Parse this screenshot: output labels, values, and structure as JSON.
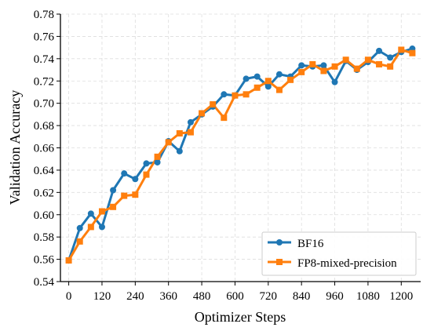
{
  "chart_data": {
    "type": "line",
    "xlabel": "Optimizer Steps",
    "ylabel": "Validation Accuracy",
    "xlim": [
      -30,
      1270
    ],
    "ylim": [
      0.54,
      0.78
    ],
    "x_ticks": [
      0,
      120,
      240,
      360,
      480,
      600,
      720,
      840,
      960,
      1080,
      1200
    ],
    "y_ticks": [
      0.54,
      0.56,
      0.58,
      0.6,
      0.62,
      0.64,
      0.66,
      0.68,
      0.7,
      0.72,
      0.74,
      0.76,
      0.78
    ],
    "y_tick_labels": [
      "0.54",
      "0.56",
      "0.58",
      "0.60",
      "0.62",
      "0.64",
      "0.66",
      "0.68",
      "0.70",
      "0.72",
      "0.74",
      "0.76",
      "0.78"
    ],
    "grid": true,
    "legend_position": "bottom-right",
    "series": [
      {
        "name": "BF16",
        "color": "#1f77b4",
        "marker": "circle",
        "x": [
          0,
          40,
          80,
          120,
          160,
          200,
          240,
          280,
          320,
          360,
          400,
          440,
          480,
          520,
          560,
          600,
          640,
          680,
          720,
          760,
          800,
          840,
          880,
          920,
          960,
          1000,
          1040,
          1080,
          1120,
          1160,
          1200,
          1240
        ],
        "values": [
          0.559,
          0.588,
          0.601,
          0.589,
          0.622,
          0.637,
          0.632,
          0.646,
          0.647,
          0.666,
          0.657,
          0.683,
          0.69,
          0.697,
          0.708,
          0.707,
          0.722,
          0.724,
          0.715,
          0.726,
          0.724,
          0.734,
          0.733,
          0.734,
          0.719,
          0.738,
          0.73,
          0.737,
          0.747,
          0.741,
          0.746,
          0.749
        ]
      },
      {
        "name": "FP8-mixed-precision",
        "color": "#ff7f0e",
        "marker": "square",
        "x": [
          0,
          40,
          80,
          120,
          160,
          200,
          240,
          280,
          320,
          360,
          400,
          440,
          480,
          520,
          560,
          600,
          640,
          680,
          720,
          760,
          800,
          840,
          880,
          920,
          960,
          1000,
          1040,
          1080,
          1120,
          1160,
          1200,
          1240
        ],
        "values": [
          0.559,
          0.576,
          0.589,
          0.603,
          0.607,
          0.617,
          0.618,
          0.636,
          0.652,
          0.665,
          0.673,
          0.674,
          0.691,
          0.699,
          0.687,
          0.707,
          0.708,
          0.714,
          0.72,
          0.712,
          0.721,
          0.728,
          0.735,
          0.729,
          0.733,
          0.739,
          0.731,
          0.739,
          0.735,
          0.733,
          0.748,
          0.745
        ]
      }
    ]
  }
}
